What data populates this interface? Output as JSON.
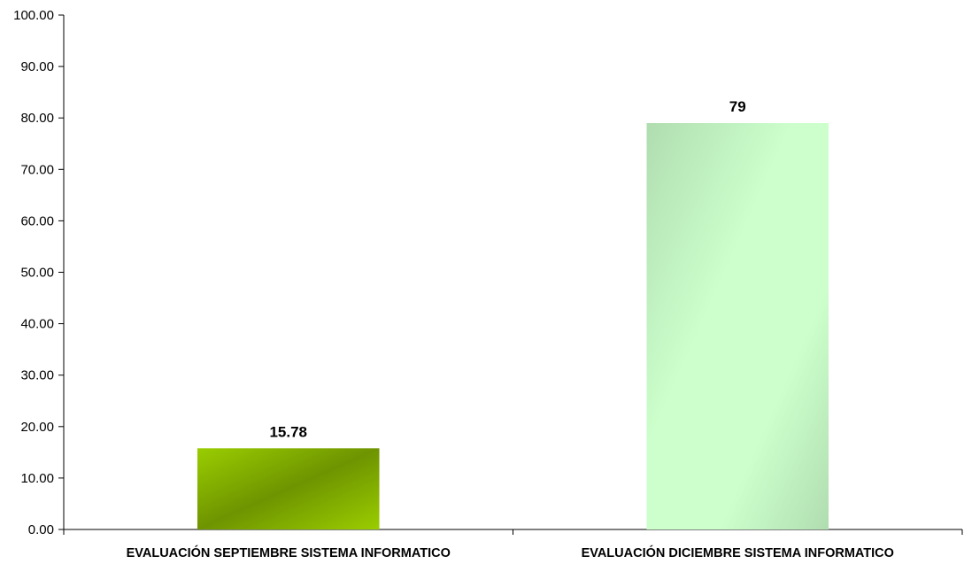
{
  "chart_data": {
    "type": "bar",
    "title": "",
    "xlabel": "",
    "ylabel": "",
    "ylim": [
      0,
      100
    ],
    "yticks": [
      "0.00",
      "10.00",
      "20.00",
      "30.00",
      "40.00",
      "50.00",
      "60.00",
      "70.00",
      "80.00",
      "90.00",
      "100.00"
    ],
    "categories": [
      "EVALUACIÓN SEPTIEMBRE SISTEMA INFORMATICO",
      "EVALUACIÓN DICIEMBRE SISTEMA INFORMATICO"
    ],
    "values": [
      15.78,
      79
    ],
    "data_labels": [
      "15.78",
      "79"
    ],
    "bar_colors": [
      {
        "light": "#9ACD00",
        "dark": "#6E9400"
      },
      {
        "light": "#CCFFCC",
        "dark": "#B0DDB0"
      }
    ],
    "grid": false,
    "legend": "none"
  }
}
